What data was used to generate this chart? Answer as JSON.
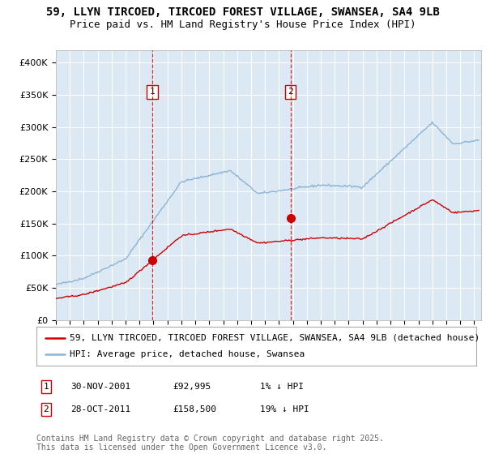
{
  "title_line1": "59, LLYN TIRCOED, TIRCOED FOREST VILLAGE, SWANSEA, SA4 9LB",
  "title_line2": "Price paid vs. HM Land Registry's House Price Index (HPI)",
  "ylim": [
    0,
    420000
  ],
  "yticks": [
    0,
    50000,
    100000,
    150000,
    200000,
    250000,
    300000,
    350000,
    400000
  ],
  "ytick_labels": [
    "£0",
    "£50K",
    "£100K",
    "£150K",
    "£200K",
    "£250K",
    "£300K",
    "£350K",
    "£400K"
  ],
  "xlim_start": 1995.0,
  "xlim_end": 2025.5,
  "bg_color": "#dce9f5",
  "grid_color": "#ffffff",
  "red_line_color": "#cc0000",
  "blue_line_color": "#8ab4d4",
  "marker1_date": 2001.92,
  "marker1_value": 92995,
  "marker2_date": 2011.83,
  "marker2_value": 158500,
  "vline_color": "#cc0000",
  "legend_line1": "59, LLYN TIRCOED, TIRCOED FOREST VILLAGE, SWANSEA, SA4 9LB (detached house)",
  "legend_line2": "HPI: Average price, detached house, Swansea",
  "footer": "Contains HM Land Registry data © Crown copyright and database right 2025.\nThis data is licensed under the Open Government Licence v3.0.",
  "title_fontsize": 10,
  "subtitle_fontsize": 9,
  "tick_fontsize": 8,
  "legend_fontsize": 8,
  "annotation_fontsize": 8,
  "footer_fontsize": 7
}
